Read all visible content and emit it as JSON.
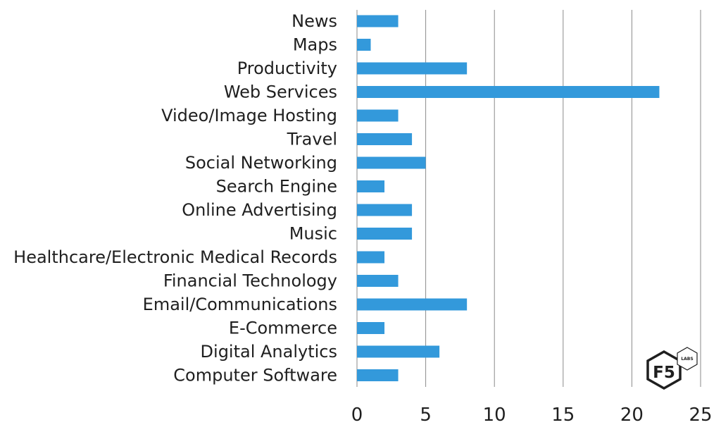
{
  "chart_data": {
    "type": "bar",
    "orientation": "horizontal",
    "title": "",
    "xlabel": "",
    "ylabel": "",
    "categories": [
      "News",
      "Maps",
      "Productivity",
      "Web Services",
      "Video/Image Hosting",
      "Travel",
      "Social Networking",
      "Search Engine",
      "Online Advertising",
      "Music",
      "Healthcare/Electronic Medical Records",
      "Financial Technology",
      "Email/Communications",
      "E-Commerce",
      "Digital Analytics",
      "Computer Software"
    ],
    "values": [
      3,
      1,
      8,
      22,
      3,
      4,
      5,
      2,
      4,
      4,
      2,
      3,
      8,
      2,
      6,
      3
    ],
    "xlim": [
      0,
      25
    ],
    "xticks": [
      0,
      5,
      10,
      15,
      20,
      25
    ],
    "grid": "vertical",
    "bar_color": "#3399db"
  },
  "logo": {
    "main_text": "F5",
    "badge_text": "LABS"
  }
}
